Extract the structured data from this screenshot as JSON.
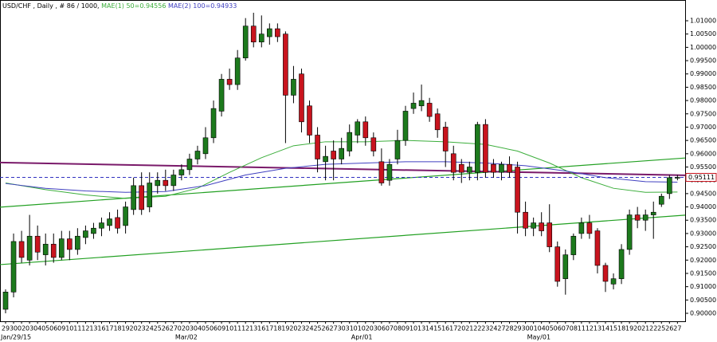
{
  "chart_data": {
    "type": "candlestick",
    "header": "USD/CHF , Daily , # 86 / 1000,",
    "categories": [
      "29",
      "30",
      "02",
      "03",
      "04",
      "05",
      "06",
      "09",
      "10",
      "11",
      "12",
      "13",
      "16",
      "17",
      "18",
      "19",
      "20",
      "23",
      "24",
      "25",
      "26",
      "27",
      "02",
      "03",
      "04",
      "05",
      "06",
      "09",
      "10",
      "11",
      "12",
      "13",
      "16",
      "17",
      "18",
      "19",
      "20",
      "23",
      "24",
      "25",
      "26",
      "27",
      "30",
      "31",
      "01",
      "02",
      "03",
      "06",
      "07",
      "08",
      "09",
      "10",
      "13",
      "14",
      "15",
      "16",
      "17",
      "20",
      "21",
      "22",
      "23",
      "24",
      "27",
      "28",
      "29",
      "30",
      "01",
      "04",
      "05",
      "06",
      "07",
      "08",
      "11",
      "12",
      "13",
      "14",
      "15",
      "18",
      "19",
      "20",
      "21",
      "22",
      "25",
      "26",
      "27"
    ],
    "period_labels": [
      {
        "x": 0,
        "label": "Jan/29/15"
      },
      {
        "x": 22,
        "label": "Mar/02"
      },
      {
        "x": 44,
        "label": "Apr/01"
      },
      {
        "x": 66,
        "label": "May/01"
      }
    ],
    "open": [
      0.9015,
      0.908,
      0.927,
      0.92,
      0.929,
      0.922,
      0.926,
      0.921,
      0.928,
      0.924,
      0.9285,
      0.93,
      0.932,
      0.933,
      0.936,
      0.933,
      0.939,
      0.948,
      0.94,
      0.948,
      0.95,
      0.948,
      0.952,
      0.954,
      0.958,
      0.96,
      0.966,
      0.976,
      0.988,
      0.986,
      0.996,
      1.008,
      1.002,
      1.004,
      1.007,
      1.005,
      0.982,
      0.99,
      0.978,
      0.967,
      0.957,
      0.961,
      0.958,
      0.961,
      0.967,
      0.972,
      0.966,
      0.957,
      0.95,
      0.958,
      0.965,
      0.977,
      0.978,
      0.979,
      0.975,
      0.97,
      0.96,
      0.956,
      0.953,
      0.953,
      0.971,
      0.956,
      0.953,
      0.956,
      0.955,
      0.938,
      0.932,
      0.934,
      0.934,
      0.925,
      0.913,
      0.922,
      0.93,
      0.934,
      0.931,
      0.918,
      0.911,
      0.913,
      0.924,
      0.937,
      0.935,
      0.937,
      0.941,
      0.945,
      0.951
    ],
    "high": [
      0.909,
      0.93,
      0.931,
      0.937,
      0.933,
      0.93,
      0.93,
      0.931,
      0.931,
      0.932,
      0.933,
      0.934,
      0.936,
      0.938,
      0.939,
      0.942,
      0.951,
      0.953,
      0.953,
      0.953,
      0.954,
      0.954,
      0.956,
      0.96,
      0.963,
      0.97,
      0.98,
      0.99,
      0.992,
      0.999,
      1.011,
      1.013,
      1.012,
      1.009,
      1.009,
      1.006,
      0.993,
      0.992,
      0.98,
      0.97,
      0.963,
      0.965,
      0.966,
      0.971,
      0.973,
      0.974,
      0.968,
      0.962,
      0.958,
      0.969,
      0.978,
      0.983,
      0.986,
      0.981,
      0.977,
      0.972,
      0.963,
      0.958,
      0.957,
      0.972,
      0.973,
      0.958,
      0.957,
      0.959,
      0.957,
      0.942,
      0.936,
      0.938,
      0.941,
      0.927,
      0.924,
      0.93,
      0.936,
      0.937,
      0.932,
      0.919,
      0.915,
      0.926,
      0.939,
      0.94,
      0.939,
      0.942,
      0.945,
      0.952,
      0.952
    ],
    "low": [
      0.9,
      0.906,
      0.919,
      0.918,
      0.92,
      0.918,
      0.919,
      0.92,
      0.92,
      0.922,
      0.926,
      0.928,
      0.929,
      0.931,
      0.93,
      0.93,
      0.937,
      0.937,
      0.938,
      0.945,
      0.946,
      0.946,
      0.95,
      0.952,
      0.956,
      0.958,
      0.964,
      0.974,
      0.984,
      0.984,
      0.995,
      1.0,
      1.0,
      1.001,
      1.002,
      0.964,
      0.979,
      0.968,
      0.964,
      0.953,
      0.95,
      0.95,
      0.956,
      0.959,
      0.964,
      0.963,
      0.959,
      0.948,
      0.948,
      0.956,
      0.963,
      0.975,
      0.976,
      0.972,
      0.966,
      0.955,
      0.95,
      0.949,
      0.95,
      0.95,
      0.951,
      0.951,
      0.95,
      0.951,
      0.93,
      0.929,
      0.929,
      0.929,
      0.923,
      0.91,
      0.907,
      0.92,
      0.928,
      0.928,
      0.915,
      0.908,
      0.909,
      0.911,
      0.922,
      0.932,
      0.931,
      0.928,
      0.94,
      0.943,
      0.95
    ],
    "close": [
      0.908,
      0.927,
      0.921,
      0.929,
      0.923,
      0.926,
      0.921,
      0.928,
      0.924,
      0.929,
      0.931,
      0.932,
      0.934,
      0.9355,
      0.932,
      0.94,
      0.948,
      0.939,
      0.949,
      0.95,
      0.948,
      0.952,
      0.954,
      0.958,
      0.961,
      0.966,
      0.977,
      0.988,
      0.986,
      0.996,
      1.008,
      1.002,
      1.005,
      1.007,
      1.004,
      0.982,
      0.988,
      0.972,
      0.967,
      0.958,
      0.959,
      0.958,
      0.962,
      0.968,
      0.972,
      0.966,
      0.961,
      0.949,
      0.956,
      0.965,
      0.976,
      0.979,
      0.98,
      0.974,
      0.969,
      0.961,
      0.953,
      0.953,
      0.955,
      0.971,
      0.953,
      0.953,
      0.956,
      0.953,
      0.938,
      0.932,
      0.934,
      0.931,
      0.925,
      0.912,
      0.922,
      0.929,
      0.934,
      0.93,
      0.918,
      0.912,
      0.913,
      0.924,
      0.937,
      0.935,
      0.937,
      0.938,
      0.944,
      0.951,
      0.9511
    ],
    "up_color": "#1d7a1d",
    "down_color": "#c8141e",
    "indicators": [
      {
        "label": "MAE(1) 50=0.94556",
        "color": "#3cae3c",
        "x": [
          0,
          5,
          10,
          15,
          20,
          24,
          28,
          32,
          36,
          40,
          45,
          50,
          55,
          60,
          64,
          68,
          72,
          76,
          80,
          84
        ],
        "values": [
          0.949,
          0.9465,
          0.9445,
          0.9432,
          0.944,
          0.947,
          0.953,
          0.9585,
          0.963,
          0.9645,
          0.9645,
          0.965,
          0.9645,
          0.9635,
          0.961,
          0.9565,
          0.951,
          0.947,
          0.9455,
          0.9456
        ]
      },
      {
        "label": "MAE(2) 100=0.94933",
        "color": "#4040c0",
        "x": [
          0,
          5,
          10,
          15,
          20,
          25,
          30,
          35,
          40,
          45,
          50,
          55,
          60,
          65,
          70,
          75,
          80,
          84
        ],
        "values": [
          0.9488,
          0.947,
          0.946,
          0.9455,
          0.9458,
          0.948,
          0.952,
          0.9545,
          0.956,
          0.9565,
          0.957,
          0.957,
          0.9565,
          0.9555,
          0.9535,
          0.951,
          0.9495,
          0.9493
        ]
      }
    ],
    "trendlines": [
      {
        "color": "#22a022",
        "x": [
          -0.7,
          85.2
        ],
        "values": [
          0.9399,
          0.9584
        ]
      },
      {
        "color": "#22a022",
        "x": [
          -0.7,
          85.2
        ],
        "values": [
          0.9183,
          0.9369
        ]
      },
      {
        "color": "#7a1a6a",
        "x": [
          -0.7,
          85.2
        ],
        "values": [
          0.9567,
          0.9519
        ]
      }
    ],
    "last_price": 0.95111,
    "ylim": [
      0.897,
      1.0178
    ],
    "yticks": [
      {
        "value": 0.9,
        "label": "0.90000"
      },
      {
        "value": 0.905,
        "label": "0.90500"
      },
      {
        "value": 0.91,
        "label": "0.91000"
      },
      {
        "value": 0.915,
        "label": "0.91500"
      },
      {
        "value": 0.92,
        "label": "0.92000"
      },
      {
        "value": 0.925,
        "label": "0.92500"
      },
      {
        "value": 0.93,
        "label": "0.93000"
      },
      {
        "value": 0.935,
        "label": "0.93500"
      },
      {
        "value": 0.94,
        "label": "0.94000"
      },
      {
        "value": 0.945,
        "label": "0.94500"
      },
      {
        "value": 0.95,
        "label": "0.95000"
      },
      {
        "value": 0.955,
        "label": "0.95500"
      },
      {
        "value": 0.96,
        "label": "0.96000"
      },
      {
        "value": 0.965,
        "label": "0.96500"
      },
      {
        "value": 0.97,
        "label": "0.97000"
      },
      {
        "value": 0.975,
        "label": "0.97500"
      },
      {
        "value": 0.98,
        "label": "0.98000"
      },
      {
        "value": 0.985,
        "label": "0.98500"
      },
      {
        "value": 0.99,
        "label": "0.99000"
      },
      {
        "value": 0.995,
        "label": "0.99500"
      },
      {
        "value": 1.0,
        "label": "1.00000"
      },
      {
        "value": 1.005,
        "label": "1.00500"
      },
      {
        "value": 1.01,
        "label": "1.01000"
      }
    ]
  }
}
